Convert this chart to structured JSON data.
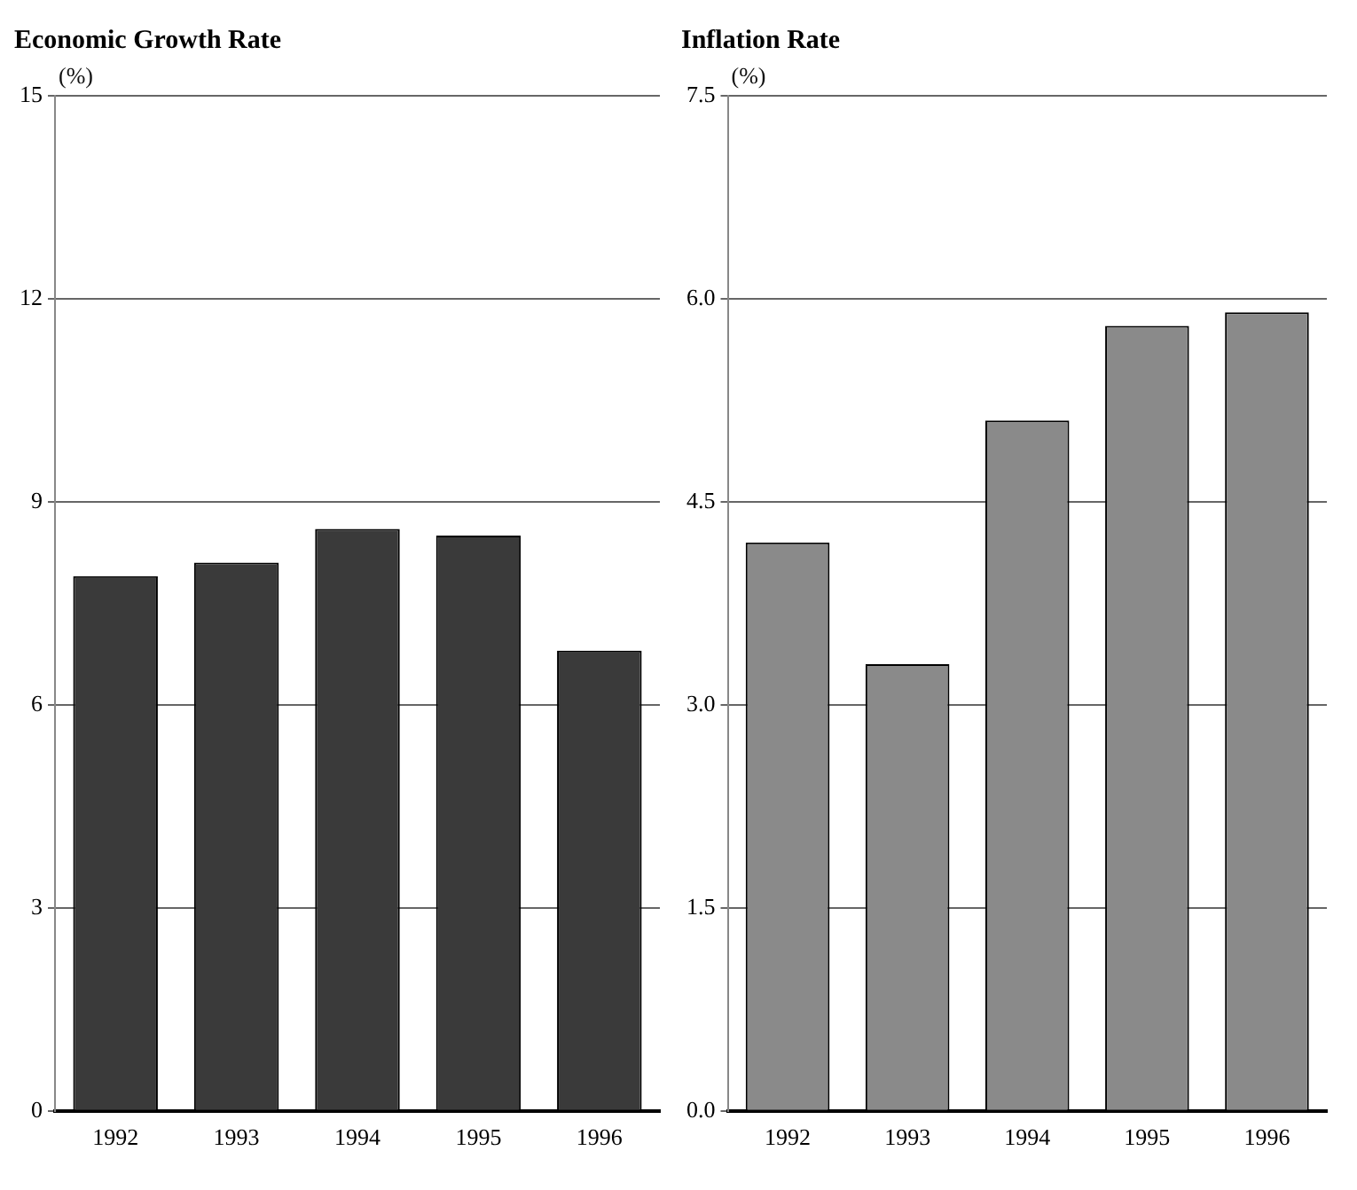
{
  "chart_data": [
    {
      "type": "bar",
      "title": "Economic Growth Rate",
      "ylabel": "(%)",
      "categories": [
        "1992",
        "1993",
        "1994",
        "1995",
        "1996"
      ],
      "values": [
        7.9,
        8.1,
        8.6,
        8.5,
        6.8
      ],
      "color": "#3a3a3a",
      "ylim": [
        0,
        15
      ],
      "yticks": [
        0,
        3,
        6,
        9,
        12,
        15
      ],
      "grid": "y"
    },
    {
      "type": "bar",
      "title": "Inflation Rate",
      "ylabel": "(%)",
      "categories": [
        "1992",
        "1993",
        "1994",
        "1995",
        "1996"
      ],
      "values": [
        4.2,
        3.3,
        5.1,
        5.8,
        5.9
      ],
      "color": "#8a8a8a",
      "ylim": [
        0,
        7.5
      ],
      "yticks": [
        {
          "value": 0,
          "label": "0.0"
        },
        {
          "value": 1.5,
          "label": "1.5"
        },
        {
          "value": 3,
          "label": "3.0"
        },
        {
          "value": 4.5,
          "label": "4.5"
        },
        {
          "value": 6,
          "label": "6.0"
        },
        7.5
      ],
      "grid": "y"
    }
  ]
}
